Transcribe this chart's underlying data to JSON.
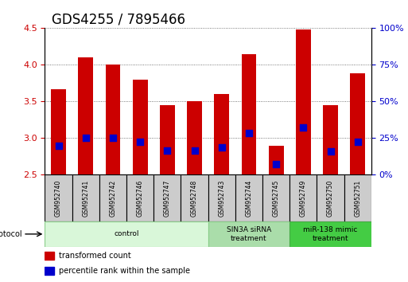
{
  "title": "GDS4255 / 7895466",
  "categories": [
    "GSM952740",
    "GSM952741",
    "GSM952742",
    "GSM952746",
    "GSM952747",
    "GSM952748",
    "GSM952743",
    "GSM952744",
    "GSM952745",
    "GSM952749",
    "GSM952750",
    "GSM952751"
  ],
  "red_values": [
    3.67,
    4.1,
    4.0,
    3.8,
    3.45,
    3.5,
    3.6,
    4.15,
    2.9,
    4.48,
    3.45,
    3.88
  ],
  "blue_values": [
    2.9,
    3.0,
    3.0,
    2.95,
    2.83,
    2.83,
    2.88,
    3.07,
    2.65,
    3.15,
    2.82,
    2.95
  ],
  "ymin": 2.5,
  "ymax": 4.5,
  "yticks_left": [
    2.5,
    3.0,
    3.5,
    4.0,
    4.5
  ],
  "ytick_labels_right": [
    "0%",
    "25%",
    "50%",
    "75%",
    "100%"
  ],
  "right_ticks_pct": [
    0,
    25,
    50,
    75,
    100
  ],
  "bar_color": "#cc0000",
  "dot_color": "#0000cc",
  "bar_width": 0.55,
  "dot_size": 35,
  "groups": [
    {
      "label": "control",
      "start": 0,
      "end": 6,
      "color": "#d9f7d9",
      "border": "#88cc88"
    },
    {
      "label": "SIN3A siRNA\ntreatment",
      "start": 6,
      "end": 9,
      "color": "#aaddaa",
      "border": "#88cc88"
    },
    {
      "label": "miR-138 mimic\ntreatment",
      "start": 9,
      "end": 12,
      "color": "#44cc44",
      "border": "#44aa44"
    }
  ],
  "protocol_label": "protocol",
  "legend_items": [
    {
      "label": "transformed count",
      "color": "#cc0000"
    },
    {
      "label": "percentile rank within the sample",
      "color": "#0000cc"
    }
  ],
  "title_fontsize": 12,
  "tick_fontsize": 8,
  "label_fontsize": 7,
  "grid_color": "#555555",
  "tick_label_color_left": "#cc0000",
  "tick_label_color_right": "#0000cc"
}
